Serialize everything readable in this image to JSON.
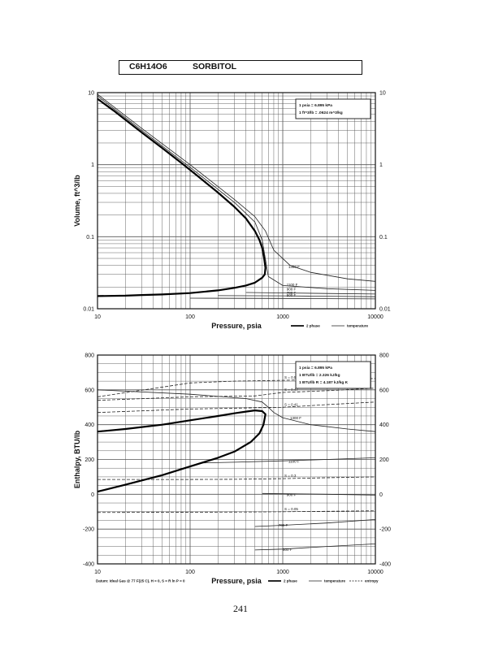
{
  "header": {
    "formula": "C6H14O6",
    "name": "SORBITOL"
  },
  "page_number": "241",
  "chart_data": [
    {
      "type": "line",
      "id": "volume",
      "xlabel": "Pressure,  psia",
      "ylabel": "Volume,  ft^3/lb",
      "xscale": "log",
      "yscale": "log",
      "xlim": [
        10,
        10000
      ],
      "ylim": [
        0.01,
        10
      ],
      "grid": true,
      "x_ticks": [
        "10",
        "100",
        "1000",
        "10000"
      ],
      "y_ticks_left": [
        "0.01",
        "0.1",
        "1",
        "10"
      ],
      "y_ticks_right": [
        "0.01",
        "0.1",
        "1",
        "10"
      ],
      "legend_box": [
        "1 psia  =  6.895 kPa",
        "1 ft^3/lb  =  .0624 m^3/kg"
      ],
      "legend_bottom": [
        "2 phase",
        "temperature"
      ],
      "series": [
        {
          "name": "2 phase",
          "x": [
            10,
            15,
            20,
            30,
            50,
            80,
            120,
            200,
            300,
            400,
            500,
            560,
            600,
            630,
            650,
            640,
            600,
            500,
            400,
            300,
            200,
            100,
            50,
            30,
            20,
            10
          ],
          "y": [
            8.2,
            5.6,
            4.2,
            2.8,
            1.7,
            1.06,
            0.7,
            0.41,
            0.26,
            0.18,
            0.12,
            0.09,
            0.07,
            0.05,
            0.037,
            0.03,
            0.027,
            0.023,
            0.021,
            0.0195,
            0.018,
            0.0165,
            0.0158,
            0.0155,
            0.0152,
            0.015
          ]
        }
      ],
      "isotherms": [
        {
          "label": "1300 F",
          "x": [
            10,
            30,
            100,
            300,
            500,
            650,
            800,
            1200,
            2000,
            5000,
            10000
          ],
          "y": [
            9.5,
            3.2,
            1.0,
            0.33,
            0.19,
            0.12,
            0.065,
            0.04,
            0.032,
            0.026,
            0.024
          ]
        },
        {
          "label": "1100 F",
          "x": [
            10,
            30,
            100,
            300,
            500,
            600,
            700,
            1000,
            3000,
            10000
          ],
          "y": [
            9.0,
            3.0,
            0.92,
            0.3,
            0.16,
            0.09,
            0.028,
            0.021,
            0.019,
            0.018
          ]
        },
        {
          "label": "900 F",
          "x": [
            400,
            1000,
            3000,
            10000
          ],
          "y": [
            0.0168,
            0.0166,
            0.0163,
            0.016
          ]
        },
        {
          "label": "700 F",
          "x": [
            200,
            1000,
            3000,
            10000
          ],
          "y": [
            0.0152,
            0.0151,
            0.0149,
            0.0147
          ]
        },
        {
          "label": "500 F",
          "x": [
            100,
            1000,
            3000,
            10000
          ],
          "y": [
            0.014,
            0.0139,
            0.0138,
            0.0137
          ]
        }
      ]
    },
    {
      "type": "line",
      "id": "enthalpy",
      "xlabel": "Pressure,  psia",
      "ylabel": "Enthalpy, BTU/lb",
      "xscale": "log",
      "yscale": "linear",
      "xlim": [
        10,
        10000
      ],
      "ylim": [
        -400,
        800
      ],
      "grid": true,
      "x_ticks": [
        "10",
        "100",
        "1000",
        "10000"
      ],
      "y_ticks_left": [
        "-400",
        "-200",
        "0",
        "200",
        "400",
        "600",
        "800"
      ],
      "y_ticks_right": [
        "-400",
        "-200",
        "0",
        "200",
        "400",
        "600",
        "800"
      ],
      "legend_box": [
        "1 psia  =  6.895 kPa",
        "1 BTU/lb  =  2.326 kJ/kg",
        "1 BTU/lb R  =  4.187 kJ/kg K"
      ],
      "legend_bottom": [
        "2 phase",
        "temperature",
        "entropy"
      ],
      "footnote": "Datum: Ideal Gas @ 77 F(25 C),  H = 0,  S = R ln P = 0",
      "series": [
        {
          "name": "2 phase",
          "x": [
            10,
            20,
            50,
            100,
            200,
            300,
            400,
            500,
            600,
            650,
            620,
            560,
            450,
            300,
            200,
            100,
            50,
            20,
            10
          ],
          "y": [
            360,
            375,
            400,
            425,
            450,
            465,
            475,
            482,
            478,
            460,
            400,
            350,
            300,
            245,
            210,
            160,
            110,
            55,
            15
          ]
        }
      ],
      "isotherms": [
        {
          "label": "1300 F",
          "x": [
            10,
            100,
            400,
            600,
            700,
            800,
            1000,
            2000,
            5000,
            10000
          ],
          "y": [
            600,
            575,
            550,
            530,
            500,
            470,
            440,
            400,
            375,
            360
          ]
        },
        {
          "label": "1100 F",
          "x": [
            130,
            300,
            1000,
            3000,
            10000
          ],
          "y": [
            180,
            184,
            192,
            200,
            210
          ]
        },
        {
          "label": "900 F",
          "x": [
            600,
            1000,
            3000,
            10000
          ],
          "y": [
            5,
            3,
            0,
            -5
          ]
        },
        {
          "label": "700 F",
          "x": [
            500,
            1000,
            3000,
            10000
          ],
          "y": [
            -185,
            -178,
            -165,
            -145
          ]
        },
        {
          "label": "500 F",
          "x": [
            500,
            1000,
            3000,
            10000
          ],
          "y": [
            -320,
            -315,
            -300,
            -285
          ]
        }
      ],
      "entropy": [
        {
          "label": "S = 0.53",
          "x": [
            10,
            100,
            300,
            1000,
            3000,
            10000
          ],
          "y": [
            560,
            640,
            650,
            655,
            660,
            665
          ]
        },
        {
          "label": "S = 0.47",
          "x": [
            10,
            100,
            500,
            1000,
            3000,
            10000
          ],
          "y": [
            540,
            560,
            565,
            585,
            595,
            610
          ]
        },
        {
          "label": "S = 0.41",
          "x": [
            10,
            100,
            1000,
            3000,
            10000
          ],
          "y": [
            470,
            490,
            500,
            515,
            530
          ]
        },
        {
          "label": "S = 0.3",
          "x": [
            10,
            100,
            300,
            1000,
            3000,
            10000
          ],
          "y": [
            85,
            85,
            86,
            90,
            95,
            100
          ]
        },
        {
          "label": "S = 0.05",
          "x": [
            10,
            100,
            300,
            1000,
            3000,
            10000
          ],
          "y": [
            -105,
            -103,
            -102,
            -100,
            -98,
            -95
          ]
        }
      ]
    }
  ]
}
